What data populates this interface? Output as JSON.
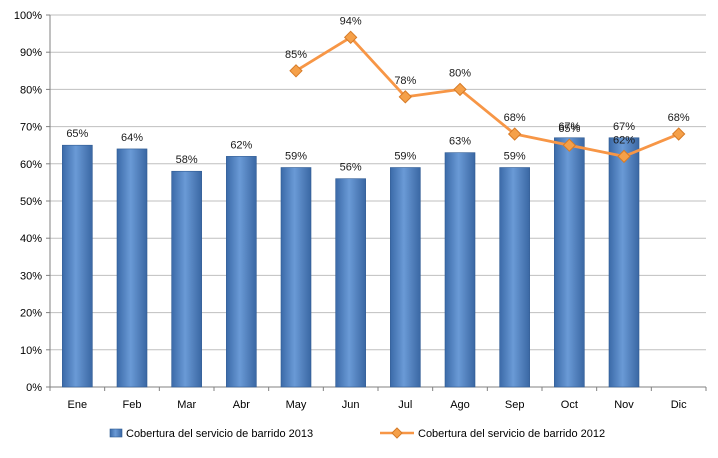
{
  "chart_data": {
    "type": "bar",
    "categories": [
      "Ene",
      "Feb",
      "Mar",
      "Abr",
      "May",
      "Jun",
      "Jul",
      "Ago",
      "Sep",
      "Oct",
      "Nov",
      "Dic"
    ],
    "ylim": [
      0,
      100
    ],
    "yticks": [
      "0%",
      "10%",
      "20%",
      "30%",
      "40%",
      "50%",
      "60%",
      "70%",
      "80%",
      "90%",
      "100%"
    ],
    "grid": true,
    "legend_position": "bottom",
    "series": [
      {
        "name": "Cobertura del servicio de barrido 2013",
        "type": "bar",
        "color": "#4F81BD",
        "values": [
          65,
          64,
          58,
          62,
          59,
          56,
          59,
          63,
          59,
          67,
          67,
          null
        ],
        "labels": [
          "65%",
          "64%",
          "58%",
          "62%",
          "59%",
          "56%",
          "59%",
          "63%",
          "59%",
          "67%",
          "67%",
          ""
        ]
      },
      {
        "name": "Cobertura del servicio de barrido 2012",
        "type": "line",
        "color": "#F79646",
        "values": [
          null,
          null,
          null,
          null,
          85,
          94,
          78,
          80,
          68,
          65,
          62,
          68
        ],
        "labels": [
          "",
          "",
          "",
          "",
          "85%",
          "94%",
          "78%",
          "80%",
          "68%",
          "65%",
          "62%",
          "68%"
        ]
      }
    ]
  }
}
